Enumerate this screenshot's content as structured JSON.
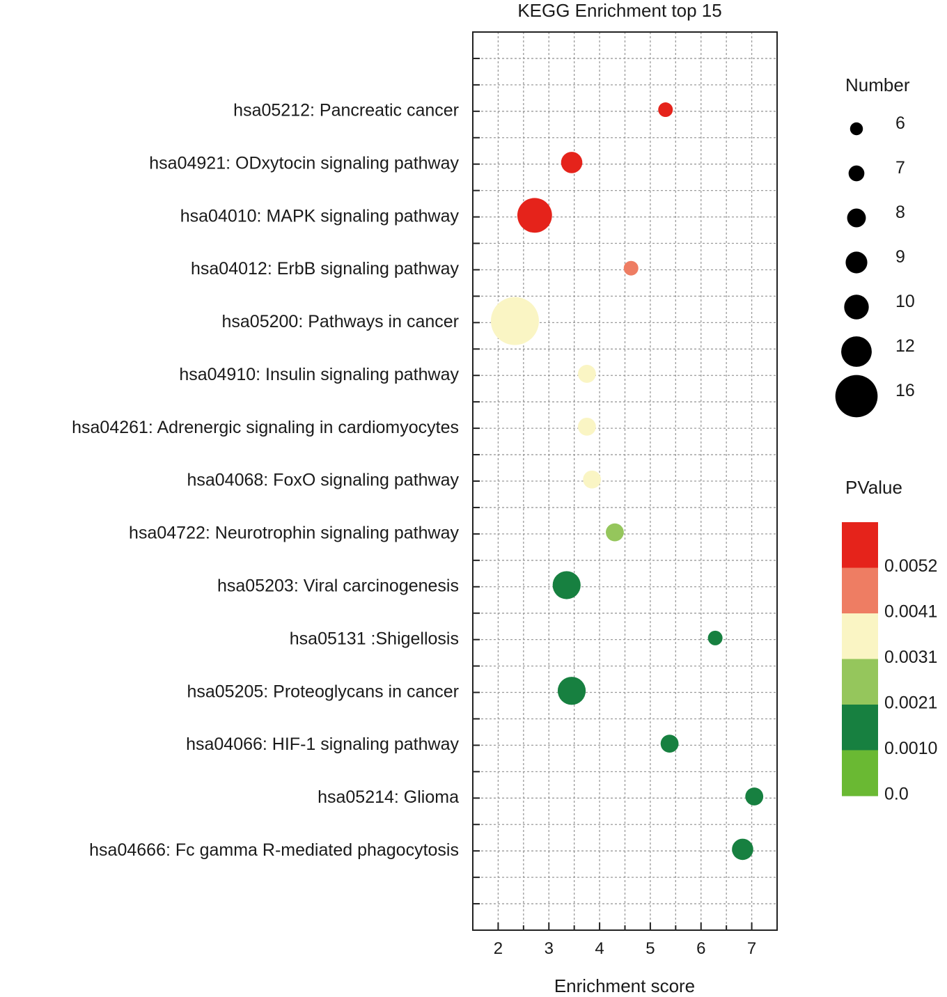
{
  "chart_data": {
    "type": "scatter",
    "title": "KEGG Enrichment top 15",
    "xlabel": "Enrichment score",
    "ylabel": "",
    "xlim": [
      1.5,
      7.5
    ],
    "x_ticks": [
      "2",
      "3",
      "4",
      "5",
      "6",
      "7"
    ],
    "grid": true,
    "points": [
      {
        "term": "hsa05212: Pancreatic cancer",
        "x": 5.3,
        "number": 6,
        "pvalue": 0.0058
      },
      {
        "term": "hsa04921: ODxytocin signaling pathway",
        "x": 3.45,
        "number": 8,
        "pvalue": 0.0056
      },
      {
        "term": "hsa04010: MAPK signaling pathway",
        "x": 2.72,
        "number": 12,
        "pvalue": 0.0054
      },
      {
        "term": "hsa04012: ErbB signaling pathway",
        "x": 4.62,
        "number": 6,
        "pvalue": 0.0045
      },
      {
        "term": "hsa05200: Pathways in cancer",
        "x": 2.33,
        "number": 16,
        "pvalue": 0.0028
      },
      {
        "term": "hsa04910: Insulin signaling pathway",
        "x": 3.75,
        "number": 7,
        "pvalue": 0.0026
      },
      {
        "term": "hsa04261: Adrenergic signaling in cardiomyocytes",
        "x": 3.75,
        "number": 7,
        "pvalue": 0.0025
      },
      {
        "term": "hsa04068: FoxO signaling pathway",
        "x": 3.85,
        "number": 7,
        "pvalue": 0.0024
      },
      {
        "term": "hsa04722: Neurotrophin signaling pathway",
        "x": 4.3,
        "number": 7,
        "pvalue": 0.0016
      },
      {
        "term": "hsa05203: Viral carcinogenesis",
        "x": 3.35,
        "number": 10,
        "pvalue": 0.0005
      },
      {
        "term": "hsa05131 :Shigellosis",
        "x": 6.28,
        "number": 6,
        "pvalue": 0.0004
      },
      {
        "term": "hsa05205: Proteoglycans in cancer",
        "x": 3.45,
        "number": 10,
        "pvalue": 0.0004
      },
      {
        "term": "hsa04066: HIF-1 signaling pathway",
        "x": 5.38,
        "number": 7,
        "pvalue": 0.0003
      },
      {
        "term": "hsa05214: Glioma",
        "x": 7.05,
        "number": 7,
        "pvalue": 0.0003
      },
      {
        "term": "hsa04666: Fc gamma R-mediated phagocytosis",
        "x": 6.82,
        "number": 8,
        "pvalue": 0.0002
      }
    ],
    "size_legend": {
      "title": "Number",
      "entries": [
        {
          "label": "6",
          "value": 6
        },
        {
          "label": "7",
          "value": 7
        },
        {
          "label": "8",
          "value": 8
        },
        {
          "label": "9",
          "value": 9
        },
        {
          "label": "10",
          "value": 10
        },
        {
          "label": "12",
          "value": 12
        },
        {
          "label": "16",
          "value": 16
        }
      ]
    },
    "color_legend": {
      "title": "PValue",
      "labels": [
        "0.0052",
        "0.0041",
        "0.0031",
        "0.0021",
        "0.0010",
        "0.0"
      ],
      "bands": [
        {
          "min": 0.0052,
          "max": 0.007,
          "color": "#e5231b"
        },
        {
          "min": 0.0041,
          "max": 0.0052,
          "color": "#ee7d63"
        },
        {
          "min": 0.0021,
          "max": 0.0041,
          "color": "#faf5c4"
        },
        {
          "min": 0.001,
          "max": 0.0021,
          "color": "#95c65c"
        },
        {
          "min": 0.0,
          "max": 0.001,
          "color": "#178040"
        },
        {
          "min": -0.001,
          "max": 0.0,
          "color": "#6ab933"
        }
      ]
    }
  }
}
